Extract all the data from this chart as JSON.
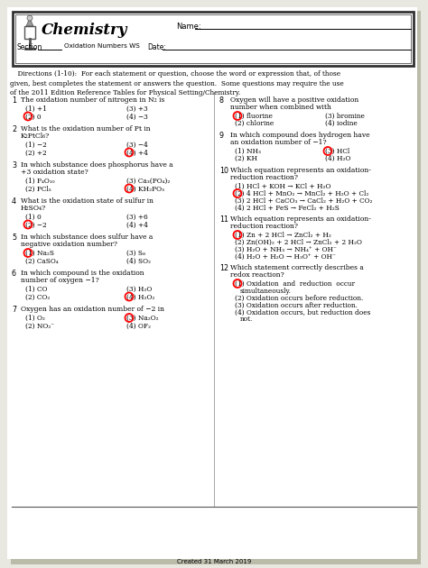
{
  "bg_color": "#e8e8e0",
  "page_bg": "#ffffff",
  "footer": "Created 31 March 2019",
  "title": "Chemistry",
  "questions_left": [
    {
      "num": "1",
      "text": "The oxidation number of nitrogen in N₂ is",
      "choices": [
        "(1) +1",
        "(3) +3",
        "(2) 0",
        "(4) −3"
      ],
      "answer_idx": 2
    },
    {
      "num": "2",
      "text": "What is the oxidation number of Pt in\nK₂PtCl₆?",
      "choices": [
        "(1) −2",
        "(3) −4",
        "(2) +2",
        "(4) +4"
      ],
      "answer_idx": 3
    },
    {
      "num": "3",
      "text": "In which substance does phosphorus have a\n+3 oxidation state?",
      "choices": [
        "(1) P₄O₁₀",
        "(3) Ca₃(PO₄)₂",
        "(2) PCl₅",
        "(4) KH₂PO₃"
      ],
      "answer_idx": 3
    },
    {
      "num": "4",
      "text": "What is the oxidation state of sulfur in\nH₂SO₄?",
      "choices": [
        "(1) 0",
        "(3) +6",
        "(2) −2",
        "(4) +4"
      ],
      "answer_idx": 2
    },
    {
      "num": "5",
      "text": "In which substance does sulfur have a\nnegative oxidation number?",
      "choices": [
        "(1) Na₂S",
        "(3) S₈",
        "(2) CaSO₄",
        "(4) SO₂"
      ],
      "answer_idx": 0
    },
    {
      "num": "6",
      "text": "In which compound is the oxidation\nnumber of oxygen −1?",
      "choices": [
        "(1) CO",
        "(3) H₂O",
        "(2) CO₂",
        "(4) H₂O₂"
      ],
      "answer_idx": 3
    },
    {
      "num": "7",
      "text": "Oxygen has an oxidation number of −2 in",
      "choices": [
        "(1) O₂",
        "(3) Na₂O₂",
        "(2) NO₂⁻",
        "(4) OF₂"
      ],
      "answer_idx": 1
    }
  ],
  "questions_right": [
    {
      "num": "8",
      "text": "Oxygen will have a positive oxidation\nnumber when combined with",
      "choices": [
        "(1) fluorine",
        "(3) bromine",
        "(2) chlorine",
        "(4) iodine"
      ],
      "answer_idx": 0,
      "two_col": true
    },
    {
      "num": "9",
      "text": "In which compound does hydrogen have\nan oxidation number of −1?",
      "choices": [
        "(1) NH₃",
        "(3) HCl",
        "(2) KH",
        "(4) H₂O"
      ],
      "answer_idx": 1,
      "two_col": true
    },
    {
      "num": "10",
      "text": "Which equation represents an oxidation-\nreduction reaction?",
      "choices": [
        "(1) HCl + KOH → KCl + H₂O",
        "(2) 4 HCl + MnO₂ → MnCl₂ + H₂O + Cl₂",
        "(3) 2 HCl + CaCO₃ → CaCl₂ + H₂O + CO₂",
        "(4) 2 HCl + FeS → FeCl₂ + H₂S"
      ],
      "answer_idx": 1,
      "two_col": false
    },
    {
      "num": "11",
      "text": "Which equation represents an oxidation-\nreduction reaction?",
      "choices": [
        "(1) Zn + 2 HCl → ZnCl₂ + H₂",
        "(2) Zn(OH)₂ + 2 HCl → ZnCl₂ + 2 H₂O",
        "(3) H₂O + NH₃ → NH₄⁺ + OH⁻",
        "(4) H₂O + H₂O → H₃O⁺ + OH⁻"
      ],
      "answer_idx": 0,
      "two_col": false
    },
    {
      "num": "12",
      "text": "Which statement correctly describes a\nredox reaction?",
      "choices": [
        "(1) Oxidation  and  reduction  occur\n     simultaneously.",
        "(2) Oxidation occurs before reduction.",
        "(3) Oxidation occurs after reduction.",
        "(4) Oxidation occurs, but reduction does\n     not."
      ],
      "answer_idx": 0,
      "two_col": false
    }
  ]
}
